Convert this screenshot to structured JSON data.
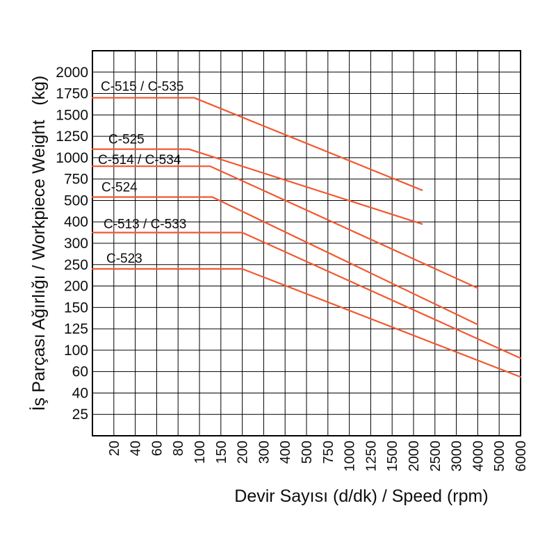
{
  "chart_data": {
    "type": "line",
    "description": "Workpiece weight vs spindle speed capacity chart for lathe models",
    "grid": true,
    "line_color": "#f2582f",
    "x_axis": {
      "label": "Devir Sayısı (d/dk) / Speed (rpm)",
      "unit": "rpm",
      "ticks": [
        20,
        40,
        60,
        80,
        100,
        150,
        200,
        300,
        400,
        500,
        750,
        1000,
        1250,
        1500,
        2000,
        2500,
        3000,
        4000,
        5000,
        6000
      ]
    },
    "y_axis": {
      "label": "İş Parçası Ağırlığı / Workpiece Weight   (kg)",
      "unit": "kg",
      "ticks": [
        2000,
        1750,
        1500,
        1250,
        1000,
        750,
        500,
        400,
        300,
        250,
        200,
        150,
        125,
        100,
        60,
        40,
        25
      ]
    },
    "series": [
      {
        "name": "C-515 / C-535",
        "max_workpiece_weight_kg": 1700,
        "points_rpm_kg": [
          [
            95,
            1700
          ],
          [
            2200,
            620
          ]
        ]
      },
      {
        "name": "C-525",
        "max_workpiece_weight_kg": 1100,
        "points_rpm_kg": [
          [
            90,
            1100
          ],
          [
            2200,
            390
          ]
        ]
      },
      {
        "name": "C-514 / C-534",
        "max_workpiece_weight_kg": 900,
        "points_rpm_kg": [
          [
            125,
            900
          ],
          [
            4000,
            195
          ]
        ]
      },
      {
        "name": "C-524",
        "max_workpiece_weight_kg": 540,
        "points_rpm_kg": [
          [
            130,
            540
          ],
          [
            4000,
            130
          ]
        ]
      },
      {
        "name": "C-513 / C-533",
        "max_workpiece_weight_kg": 350,
        "points_rpm_kg": [
          [
            200,
            350
          ],
          [
            6000,
            85
          ]
        ]
      },
      {
        "name": "C-523",
        "max_workpiece_weight_kg": 240,
        "points_rpm_kg": [
          [
            200,
            240
          ],
          [
            6000,
            55
          ]
        ]
      }
    ]
  }
}
